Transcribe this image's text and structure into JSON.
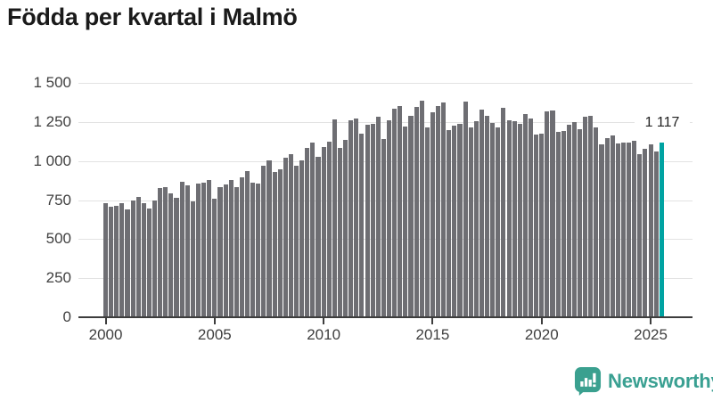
{
  "title": "Födda per kvartal i Malmö",
  "branding": {
    "name": "Newsworthy"
  },
  "colors": {
    "bar": "#6e6e73",
    "highlight": "#00a3a2",
    "gridline": "#e2e2e2",
    "axis": "#3d3d3d",
    "title_text": "#1a1a1a",
    "tick_text": "#3f3f3f",
    "brand_teal": "#3aa092"
  },
  "chart_data": {
    "type": "bar",
    "title": "Födda per kvartal i Malmö",
    "frequency": "quarterly",
    "x_start": "2000-Q1",
    "x_end": "2025-Q3",
    "xlabel": "",
    "ylabel": "",
    "ylim": [
      0,
      1500
    ],
    "grid": "horizontal",
    "legend": "none",
    "x_tick_labels": [
      "2000",
      "2005",
      "2010",
      "2015",
      "2020",
      "2025"
    ],
    "x_tick_indices": [
      0,
      20,
      40,
      60,
      80,
      100
    ],
    "y_tick_values": [
      0,
      250,
      500,
      750,
      1000,
      1250,
      1500
    ],
    "y_tick_labels": [
      "0",
      "250",
      "500",
      "750",
      "1 000",
      "1 250",
      "1 500"
    ],
    "values": [
      731,
      706,
      712,
      731,
      689,
      750,
      769,
      731,
      698,
      750,
      826,
      830,
      793,
      763,
      868,
      845,
      744,
      854,
      864,
      877,
      759,
      832,
      851,
      879,
      835,
      896,
      934,
      864,
      854,
      972,
      1006,
      930,
      945,
      1021,
      1044,
      968,
      1002,
      1082,
      1116,
      1025,
      1091,
      1124,
      1266,
      1082,
      1135,
      1259,
      1272,
      1177,
      1234,
      1238,
      1285,
      1139,
      1259,
      1335,
      1354,
      1221,
      1291,
      1348,
      1386,
      1215,
      1310,
      1352,
      1376,
      1200,
      1224,
      1238,
      1382,
      1215,
      1253,
      1329,
      1291,
      1244,
      1215,
      1338,
      1263,
      1253,
      1238,
      1300,
      1272,
      1168,
      1177,
      1319,
      1323,
      1187,
      1192,
      1234,
      1247,
      1206,
      1281,
      1287,
      1215,
      1105,
      1149,
      1162,
      1111,
      1120,
      1116,
      1130,
      1044,
      1078,
      1105,
      1063,
      1117
    ],
    "highlight_last": true,
    "last_value_label": "1 117"
  }
}
